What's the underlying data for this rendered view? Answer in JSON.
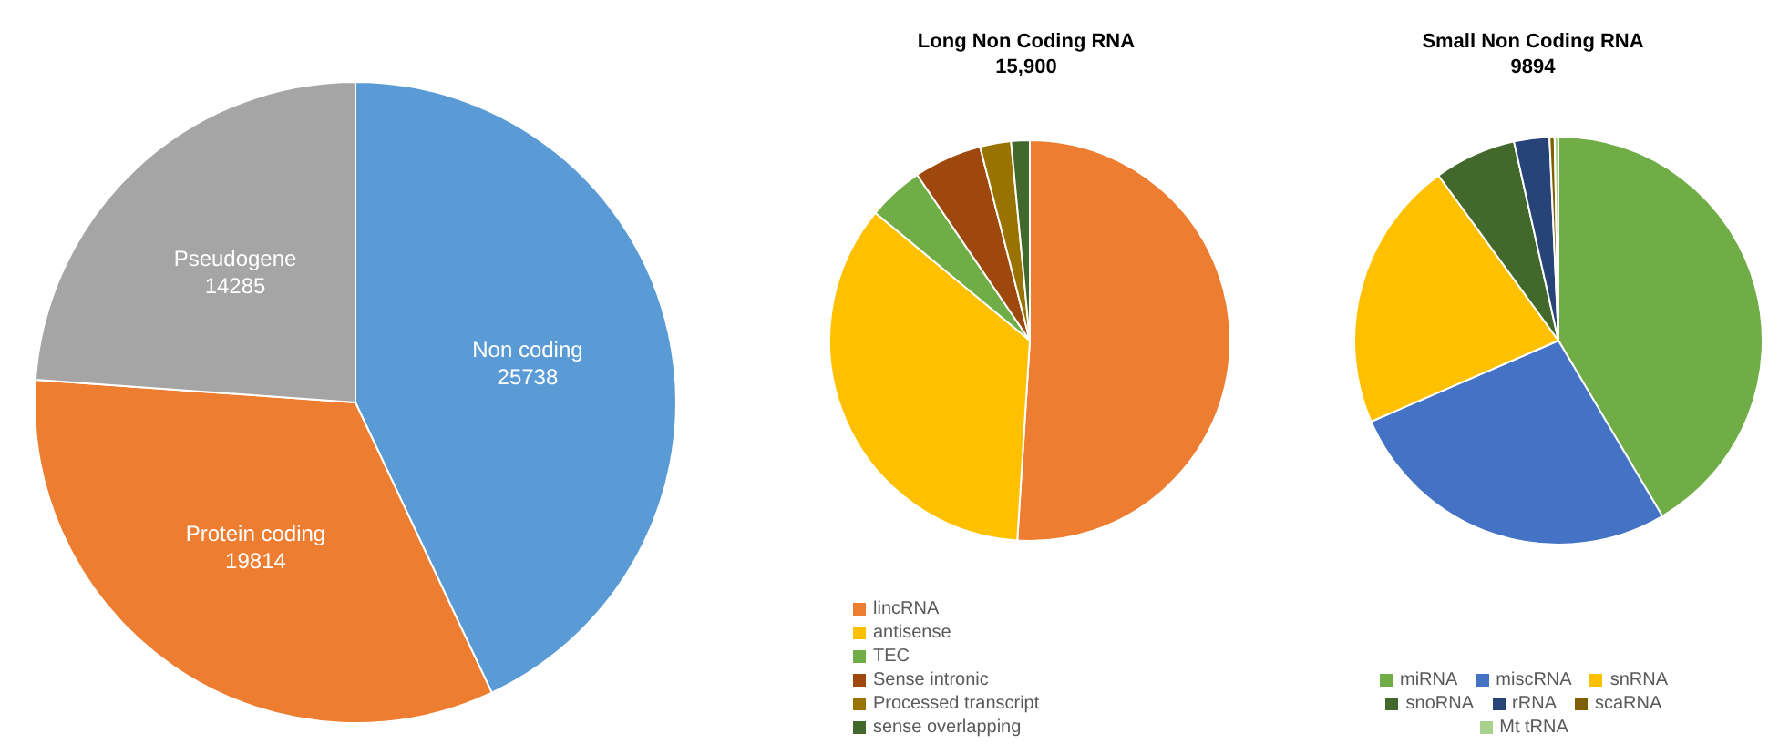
{
  "chart_data": [
    {
      "type": "pie",
      "categories": [
        "Non coding",
        "Protein coding",
        "Pseudogene"
      ],
      "values": [
        25738,
        19814,
        14285
      ],
      "colors": [
        "#5b9bd5",
        "#ed7d31",
        "#a5a5a5"
      ],
      "data_labels": true,
      "legend": false
    },
    {
      "type": "pie",
      "title": "Long Non Coding RNA",
      "subtitle": "15,900",
      "categories": [
        "lincRNA",
        "antisense",
        "TEC",
        "Sense intronic",
        "Processed transcript",
        "sense overlapping"
      ],
      "values": [
        51,
        35,
        4.5,
        5.5,
        2.5,
        1.5
      ],
      "colors": [
        "#ed7d31",
        "#ffc000",
        "#70ad47",
        "#9e480e",
        "#997300",
        "#43682b"
      ],
      "legend": "bottom"
    },
    {
      "type": "pie",
      "title": "Small Non Coding RNA",
      "subtitle": "9894",
      "categories": [
        "miRNA",
        "miscRNA",
        "snRNA",
        "snoRNA",
        "rRNA",
        "scaRNA",
        "Mt tRNA"
      ],
      "values": [
        41.5,
        27,
        21.5,
        6.5,
        2.8,
        0.4,
        0.3
      ],
      "colors": [
        "#70ad47",
        "#4472c4",
        "#ffc000",
        "#43682b",
        "#264478",
        "#7f6000",
        "#a9d18e"
      ],
      "legend": "bottom"
    }
  ]
}
